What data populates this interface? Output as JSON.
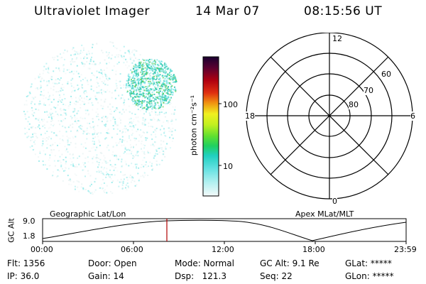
{
  "header": {
    "instrument": "Ultraviolet Imager",
    "date": "14 Mar 07",
    "time": "08:15:56 UT"
  },
  "colorbar": {
    "unit_label": "photon cm⁻²s⁻¹",
    "ticks": [
      "100",
      "10"
    ]
  },
  "polar": {
    "mlt_labels": {
      "top": "12",
      "right": "6",
      "bottom": "0",
      "left": "18"
    },
    "lat_labels": [
      "60",
      "70",
      "80"
    ]
  },
  "strip": {
    "left_title": "Geographic Lat/Lon",
    "right_title": "Apex MLat/MLT",
    "y_axis_label": "GC Alt",
    "y_max": "9.0",
    "y_min": "1.8",
    "x_ticks": [
      "00:00",
      "06:00",
      "12:00",
      "18:00",
      "23:59"
    ],
    "marker_color": "#b00000"
  },
  "info": {
    "flt": "Flt: 1356",
    "ip": "IP: 36.0",
    "door": "Door: Open",
    "gain": "Gain: 14",
    "mode": "Mode: Normal",
    "dsp": "Dsp:   121.3",
    "gcalt": "GC Alt: 9.1 Re",
    "seq": "Seq: 22",
    "glat": "GLat: *****",
    "glon": "GLon: *****"
  },
  "colors": {
    "sparse_dots": "#7de6e6",
    "dense_region": "#30c8b0",
    "bright_spots": "#60d060"
  }
}
